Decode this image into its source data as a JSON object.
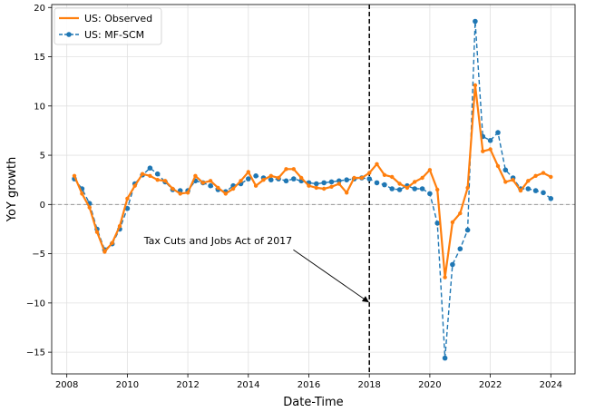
{
  "chart_data": {
    "type": "line",
    "xlabel": "Date-Time",
    "ylabel": "YoY growth",
    "xlim": [
      2007.5,
      2024.8
    ],
    "ylim": [
      -17.2,
      20.3
    ],
    "xticks": [
      2008,
      2010,
      2012,
      2014,
      2016,
      2018,
      2020,
      2022,
      2024
    ],
    "yticks": [
      -15,
      -10,
      -5,
      0,
      5,
      10,
      15,
      20
    ],
    "grid": true,
    "legend_position": "top-left",
    "reference_lines": [
      {
        "type": "horizontal",
        "y": 0,
        "style": "dashed",
        "color": "#999999"
      },
      {
        "type": "vertical",
        "x": 2018,
        "style": "dashed",
        "color": "#000000"
      }
    ],
    "annotation": {
      "text": "Tax Cuts and Jobs Act of 2017",
      "text_x": 2013.0,
      "text_y": -4.6,
      "arrow_to_x": 2018,
      "arrow_to_y": -9.9
    },
    "series": [
      {
        "name": "US: Observed",
        "color": "#ff7f0e",
        "style": "solid",
        "points": [
          [
            2008.25,
            2.9
          ],
          [
            2008.5,
            1.1
          ],
          [
            2008.75,
            -0.3
          ],
          [
            2009.0,
            -2.8
          ],
          [
            2009.25,
            -4.8
          ],
          [
            2009.5,
            -3.9
          ],
          [
            2009.75,
            -2.2
          ],
          [
            2010.0,
            0.6
          ],
          [
            2010.25,
            1.9
          ],
          [
            2010.5,
            3.1
          ],
          [
            2010.75,
            2.9
          ],
          [
            2011.0,
            2.5
          ],
          [
            2011.25,
            2.4
          ],
          [
            2011.5,
            1.6
          ],
          [
            2011.75,
            1.1
          ],
          [
            2012.0,
            1.2
          ],
          [
            2012.25,
            2.9
          ],
          [
            2012.5,
            2.2
          ],
          [
            2012.75,
            2.4
          ],
          [
            2013.0,
            1.7
          ],
          [
            2013.25,
            1.1
          ],
          [
            2013.5,
            1.6
          ],
          [
            2013.75,
            2.4
          ],
          [
            2014.0,
            3.3
          ],
          [
            2014.25,
            1.9
          ],
          [
            2014.5,
            2.5
          ],
          [
            2014.75,
            2.9
          ],
          [
            2015.0,
            2.7
          ],
          [
            2015.25,
            3.6
          ],
          [
            2015.5,
            3.6
          ],
          [
            2015.75,
            2.7
          ],
          [
            2016.0,
            1.9
          ],
          [
            2016.25,
            1.7
          ],
          [
            2016.5,
            1.6
          ],
          [
            2016.75,
            1.8
          ],
          [
            2017.0,
            2.1
          ],
          [
            2017.25,
            1.2
          ],
          [
            2017.5,
            2.7
          ],
          [
            2017.75,
            2.7
          ],
          [
            2018.0,
            3.2
          ],
          [
            2018.25,
            4.1
          ],
          [
            2018.5,
            3.0
          ],
          [
            2018.75,
            2.8
          ],
          [
            2019.0,
            2.1
          ],
          [
            2019.25,
            1.7
          ],
          [
            2019.5,
            2.3
          ],
          [
            2019.75,
            2.7
          ],
          [
            2020.0,
            3.5
          ],
          [
            2020.25,
            1.5
          ],
          [
            2020.5,
            -7.4
          ],
          [
            2020.75,
            -1.8
          ],
          [
            2021.0,
            -0.9
          ],
          [
            2021.25,
            1.7
          ],
          [
            2021.5,
            12.1
          ],
          [
            2021.75,
            5.4
          ],
          [
            2022.0,
            5.6
          ],
          [
            2022.25,
            3.9
          ],
          [
            2022.5,
            2.3
          ],
          [
            2022.75,
            2.5
          ],
          [
            2023.0,
            1.4
          ],
          [
            2023.25,
            2.4
          ],
          [
            2023.5,
            2.9
          ],
          [
            2023.75,
            3.2
          ],
          [
            2024.0,
            2.8
          ]
        ]
      },
      {
        "name": "US: MF-SCM",
        "color": "#1f77b4",
        "style": "dashed",
        "points": [
          [
            2008.25,
            2.6
          ],
          [
            2008.5,
            1.6
          ],
          [
            2008.75,
            0.1
          ],
          [
            2009.0,
            -2.5
          ],
          [
            2009.25,
            -4.6
          ],
          [
            2009.5,
            -4.0
          ],
          [
            2009.75,
            -2.5
          ],
          [
            2010.0,
            -0.4
          ],
          [
            2010.25,
            2.1
          ],
          [
            2010.5,
            3.0
          ],
          [
            2010.75,
            3.7
          ],
          [
            2011.0,
            3.1
          ],
          [
            2011.25,
            2.3
          ],
          [
            2011.5,
            1.5
          ],
          [
            2011.75,
            1.4
          ],
          [
            2012.0,
            1.4
          ],
          [
            2012.25,
            2.4
          ],
          [
            2012.5,
            2.2
          ],
          [
            2012.75,
            1.9
          ],
          [
            2013.0,
            1.5
          ],
          [
            2013.25,
            1.3
          ],
          [
            2013.5,
            1.9
          ],
          [
            2013.75,
            2.1
          ],
          [
            2014.0,
            2.6
          ],
          [
            2014.25,
            2.9
          ],
          [
            2014.5,
            2.7
          ],
          [
            2014.75,
            2.5
          ],
          [
            2015.0,
            2.6
          ],
          [
            2015.25,
            2.4
          ],
          [
            2015.5,
            2.6
          ],
          [
            2015.75,
            2.4
          ],
          [
            2016.0,
            2.2
          ],
          [
            2016.25,
            2.1
          ],
          [
            2016.5,
            2.2
          ],
          [
            2016.75,
            2.3
          ],
          [
            2017.0,
            2.4
          ],
          [
            2017.25,
            2.5
          ],
          [
            2017.5,
            2.6
          ],
          [
            2017.75,
            2.7
          ],
          [
            2018.0,
            2.6
          ],
          [
            2018.25,
            2.2
          ],
          [
            2018.5,
            2.0
          ],
          [
            2018.75,
            1.6
          ],
          [
            2019.0,
            1.5
          ],
          [
            2019.25,
            1.9
          ],
          [
            2019.5,
            1.6
          ],
          [
            2019.75,
            1.6
          ],
          [
            2020.0,
            1.1
          ],
          [
            2020.25,
            -1.9
          ],
          [
            2020.5,
            -15.6
          ],
          [
            2020.75,
            -6.1
          ],
          [
            2021.0,
            -4.5
          ],
          [
            2021.25,
            -2.6
          ],
          [
            2021.5,
            18.6
          ],
          [
            2021.75,
            6.9
          ],
          [
            2022.0,
            6.5
          ],
          [
            2022.25,
            7.3
          ],
          [
            2022.5,
            3.5
          ],
          [
            2022.75,
            2.7
          ],
          [
            2023.0,
            1.6
          ],
          [
            2023.25,
            1.6
          ],
          [
            2023.5,
            1.4
          ],
          [
            2023.75,
            1.2
          ],
          [
            2024.0,
            0.6
          ]
        ]
      }
    ]
  }
}
